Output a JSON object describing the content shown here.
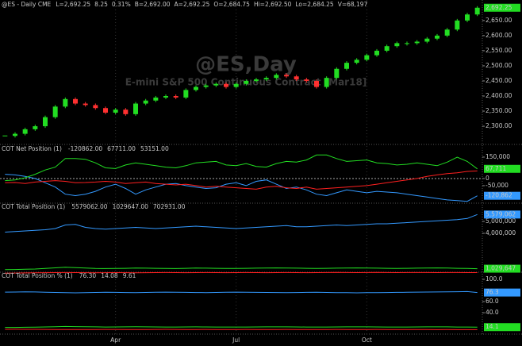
{
  "chart_data": [
    {
      "type": "candlestick",
      "title": "@ES,Day",
      "subtitle": "E-mini S&P 500 Continuous Contract [Mar18]",
      "header": "@ES - Daily CME",
      "quote": [
        {
          "text": "L=2,692.25",
          "color": "#e0e0e0"
        },
        {
          "text": "8.25",
          "color": "#22dd22"
        },
        {
          "text": "0.31%",
          "color": "#22dd22"
        },
        {
          "text": "B=2,692.00",
          "color": "#e0e0e0"
        },
        {
          "text": "A=2,692.25",
          "color": "#e0e0e0"
        },
        {
          "text": "O=2,684.75",
          "color": "#e0e0e0"
        },
        {
          "text": "Hi=2,692.50",
          "color": "#e0e0e0"
        },
        {
          "text": "Lo=2,684.25",
          "color": "#e0e0e0"
        },
        {
          "text": "V=68,197",
          "color": "#e0e0e0"
        }
      ],
      "categories": [
        null,
        null,
        null,
        null,
        null,
        null,
        null,
        null,
        null,
        null,
        null,
        "Apr",
        null,
        null,
        null,
        null,
        null,
        null,
        null,
        null,
        null,
        null,
        null,
        "Jul",
        null,
        null,
        null,
        null,
        null,
        null,
        null,
        null,
        null,
        null,
        null,
        null,
        "Oct",
        null,
        null,
        null,
        null,
        null,
        null,
        null,
        null,
        null,
        null,
        null
      ],
      "values": [
        2268,
        2275,
        2290,
        2300,
        2330,
        2365,
        2390,
        2375,
        2370,
        2360,
        2345,
        2355,
        2340,
        2375,
        2385,
        2395,
        2400,
        2395,
        2420,
        2430,
        2435,
        2440,
        2430,
        2440,
        2450,
        2455,
        2460,
        2470,
        2465,
        2455,
        2450,
        2430,
        2460,
        2490,
        2510,
        2520,
        2535,
        2550,
        2565,
        2575,
        2575,
        2580,
        2590,
        2600,
        2620,
        2650,
        2670,
        2692.25
      ],
      "up_color": "#22dd22",
      "down_color": "#ff3030",
      "last_label": "2,692.25",
      "last_color": "#22dd22",
      "ylim": [
        2245,
        2710
      ],
      "yticks": [
        {
          "value": 2300,
          "label": "2,300.00"
        },
        {
          "value": 2350,
          "label": "2,350.00"
        },
        {
          "value": 2400,
          "label": "2,400.00"
        },
        {
          "value": 2450,
          "label": "2,450.00"
        },
        {
          "value": 2500,
          "label": "2,500.00"
        },
        {
          "value": 2550,
          "label": "2,550.00"
        },
        {
          "value": 2600,
          "label": "2,600.00"
        },
        {
          "value": 2650,
          "label": "2,650.00"
        }
      ]
    },
    {
      "type": "line",
      "title": "COT Net Position (1)",
      "series": [
        {
          "color": "#3399ff",
          "readout": "-120862.00",
          "last_label": "-120,862",
          "values": [
            30000,
            25000,
            15000,
            0,
            -30000,
            -60000,
            -110000,
            -120000,
            -110000,
            -90000,
            -60000,
            -40000,
            -70000,
            -110000,
            -80000,
            -60000,
            -40000,
            -35000,
            -50000,
            -60000,
            -70000,
            -65000,
            -40000,
            -30000,
            -50000,
            -20000,
            -10000,
            -40000,
            -70000,
            -60000,
            -80000,
            -110000,
            -120000,
            -100000,
            -80000,
            -90000,
            -100000,
            -90000,
            -95000,
            -100000,
            -110000,
            -120000,
            -130000,
            -140000,
            -150000,
            -155000,
            -160000,
            -120862
          ]
        },
        {
          "color": "#22dd22",
          "readout": "67711.00",
          "last_label": "67,711",
          "values": [
            -15000,
            -10000,
            5000,
            30000,
            60000,
            80000,
            140000,
            140000,
            135000,
            110000,
            75000,
            70000,
            95000,
            110000,
            100000,
            90000,
            80000,
            75000,
            90000,
            110000,
            115000,
            120000,
            95000,
            90000,
            105000,
            85000,
            80000,
            105000,
            120000,
            115000,
            130000,
            165000,
            165000,
            140000,
            120000,
            125000,
            130000,
            110000,
            105000,
            95000,
            100000,
            110000,
            100000,
            90000,
            115000,
            150000,
            120000,
            67711
          ]
        },
        {
          "color": "#ff2020",
          "readout": "53151.00",
          "values": [
            -30000,
            -28000,
            -35000,
            -25000,
            -20000,
            -15000,
            -20000,
            -30000,
            -28000,
            -25000,
            -20000,
            -25000,
            -35000,
            -30000,
            -25000,
            -35000,
            -40000,
            -45000,
            -40000,
            -50000,
            -60000,
            -55000,
            -60000,
            -65000,
            -70000,
            -75000,
            -60000,
            -55000,
            -65000,
            -70000,
            -60000,
            -75000,
            -70000,
            -65000,
            -60000,
            -55000,
            -50000,
            -40000,
            -30000,
            -20000,
            -10000,
            0,
            15000,
            25000,
            35000,
            40000,
            50000,
            53151
          ]
        }
      ],
      "ylim": [
        -167000,
        222000
      ],
      "yticks": [
        {
          "value": 150000,
          "label": "150,000"
        },
        0,
        {
          "value": -50000,
          "label": "-50,000"
        }
      ]
    },
    {
      "type": "line",
      "title": "COT Total Position (1)",
      "series": [
        {
          "color": "#3399ff",
          "readout": "5579062.00",
          "last_label": "5,579,062",
          "values": [
            4100000,
            4150000,
            4200000,
            4250000,
            4300000,
            4400000,
            4700000,
            4750000,
            4500000,
            4400000,
            4350000,
            4400000,
            4450000,
            4500000,
            4450000,
            4400000,
            4450000,
            4500000,
            4550000,
            4600000,
            4550000,
            4500000,
            4450000,
            4400000,
            4450000,
            4500000,
            4550000,
            4600000,
            4650000,
            4550000,
            4550000,
            4600000,
            4650000,
            4700000,
            4650000,
            4700000,
            4750000,
            4800000,
            4800000,
            4850000,
            4900000,
            4950000,
            5000000,
            5050000,
            5100000,
            5150000,
            5250000,
            5579062
          ]
        },
        {
          "color": "#22dd22",
          "readout": "1029647.00",
          "last_label": "1,029,647",
          "values": [
            950000,
            960000,
            980000,
            1000000,
            1050000,
            1100000,
            1150000,
            1120000,
            1080000,
            1050000,
            1040000,
            1050000,
            1060000,
            1080000,
            1070000,
            1060000,
            1050000,
            1040000,
            1060000,
            1080000,
            1070000,
            1060000,
            1050000,
            1050000,
            1060000,
            1070000,
            1080000,
            1090000,
            1080000,
            1070000,
            1060000,
            1050000,
            1060000,
            1070000,
            1080000,
            1090000,
            1080000,
            1070000,
            1060000,
            1050000,
            1060000,
            1070000,
            1080000,
            1090000,
            1080000,
            1060000,
            1050000,
            1029647
          ]
        },
        {
          "color": "#ff2020",
          "readout": "702931.00",
          "values": [
            650000,
            660000,
            670000,
            680000,
            690000,
            700000,
            710000,
            700000,
            690000,
            680000,
            690000,
            700000,
            690000,
            680000,
            690000,
            700000,
            710000,
            700000,
            690000,
            700000,
            710000,
            700000,
            690000,
            700000,
            710000,
            700000,
            690000,
            700000,
            710000,
            700000,
            690000,
            700000,
            710000,
            720000,
            710000,
            700000,
            710000,
            720000,
            710000,
            700000,
            710000,
            705000,
            710000,
            700000,
            710000,
            705000,
            700000,
            702931
          ]
        }
      ],
      "ylim": [
        600000,
        6400000
      ],
      "yticks": [
        {
          "value": 4000000,
          "label": "4,000,000"
        },
        {
          "value": 5000000,
          "label": "5,000,000"
        }
      ]
    },
    {
      "type": "line",
      "title": "COT Total Position % (1)",
      "series": [
        {
          "color": "#3399ff",
          "readout": "76.30",
          "last_label": "76.3",
          "values": [
            77.0,
            77.2,
            77.5,
            77.3,
            76.8,
            76.5,
            76.0,
            75.8,
            76.2,
            76.5,
            76.8,
            76.6,
            76.4,
            76.2,
            76.5,
            76.8,
            77.0,
            76.8,
            76.6,
            76.4,
            76.2,
            76.5,
            76.8,
            77.0,
            76.8,
            76.6,
            76.5,
            76.3,
            76.1,
            76.4,
            76.6,
            76.8,
            76.5,
            76.2,
            76.0,
            75.8,
            76.0,
            76.2,
            76.4,
            76.6,
            76.8,
            77.0,
            77.2,
            77.4,
            77.6,
            77.8,
            78.0,
            76.3
          ]
        },
        {
          "color": "#22dd22",
          "readout": "14.08",
          "last_label": "14.1",
          "values": [
            13.5,
            13.6,
            13.8,
            14.0,
            14.4,
            14.8,
            15.2,
            15.0,
            14.7,
            14.5,
            14.3,
            14.4,
            14.6,
            14.7,
            14.5,
            14.4,
            14.3,
            14.2,
            14.4,
            14.5,
            14.4,
            14.3,
            14.2,
            14.2,
            14.3,
            14.4,
            14.5,
            14.6,
            14.5,
            14.4,
            14.3,
            14.2,
            14.3,
            14.4,
            14.5,
            14.6,
            14.5,
            14.4,
            14.3,
            14.2,
            14.3,
            14.4,
            14.5,
            14.6,
            14.5,
            14.3,
            14.2,
            14.08
          ]
        },
        {
          "color": "#ff2020",
          "readout": "9.61",
          "values": [
            10.2,
            10.3,
            10.2,
            10.1,
            10.0,
            9.9,
            9.8,
            9.7,
            9.8,
            9.9,
            10.0,
            10.0,
            9.9,
            9.8,
            9.9,
            10.0,
            10.1,
            10.0,
            9.9,
            9.9,
            10.0,
            9.9,
            9.8,
            9.9,
            10.0,
            9.9,
            9.8,
            9.9,
            10.0,
            9.9,
            9.8,
            9.8,
            9.9,
            10.0,
            9.9,
            9.8,
            9.9,
            10.0,
            9.9,
            9.8,
            9.8,
            9.7,
            9.7,
            9.6,
            9.7,
            9.6,
            9.6,
            9.61
          ]
        }
      ],
      "ylim": [
        3,
        110
      ],
      "yticks": [
        {
          "value": 100,
          "label": "100.0"
        },
        {
          "value": 60,
          "label": "60.0"
        },
        {
          "value": 40,
          "label": "40.0"
        }
      ]
    }
  ]
}
